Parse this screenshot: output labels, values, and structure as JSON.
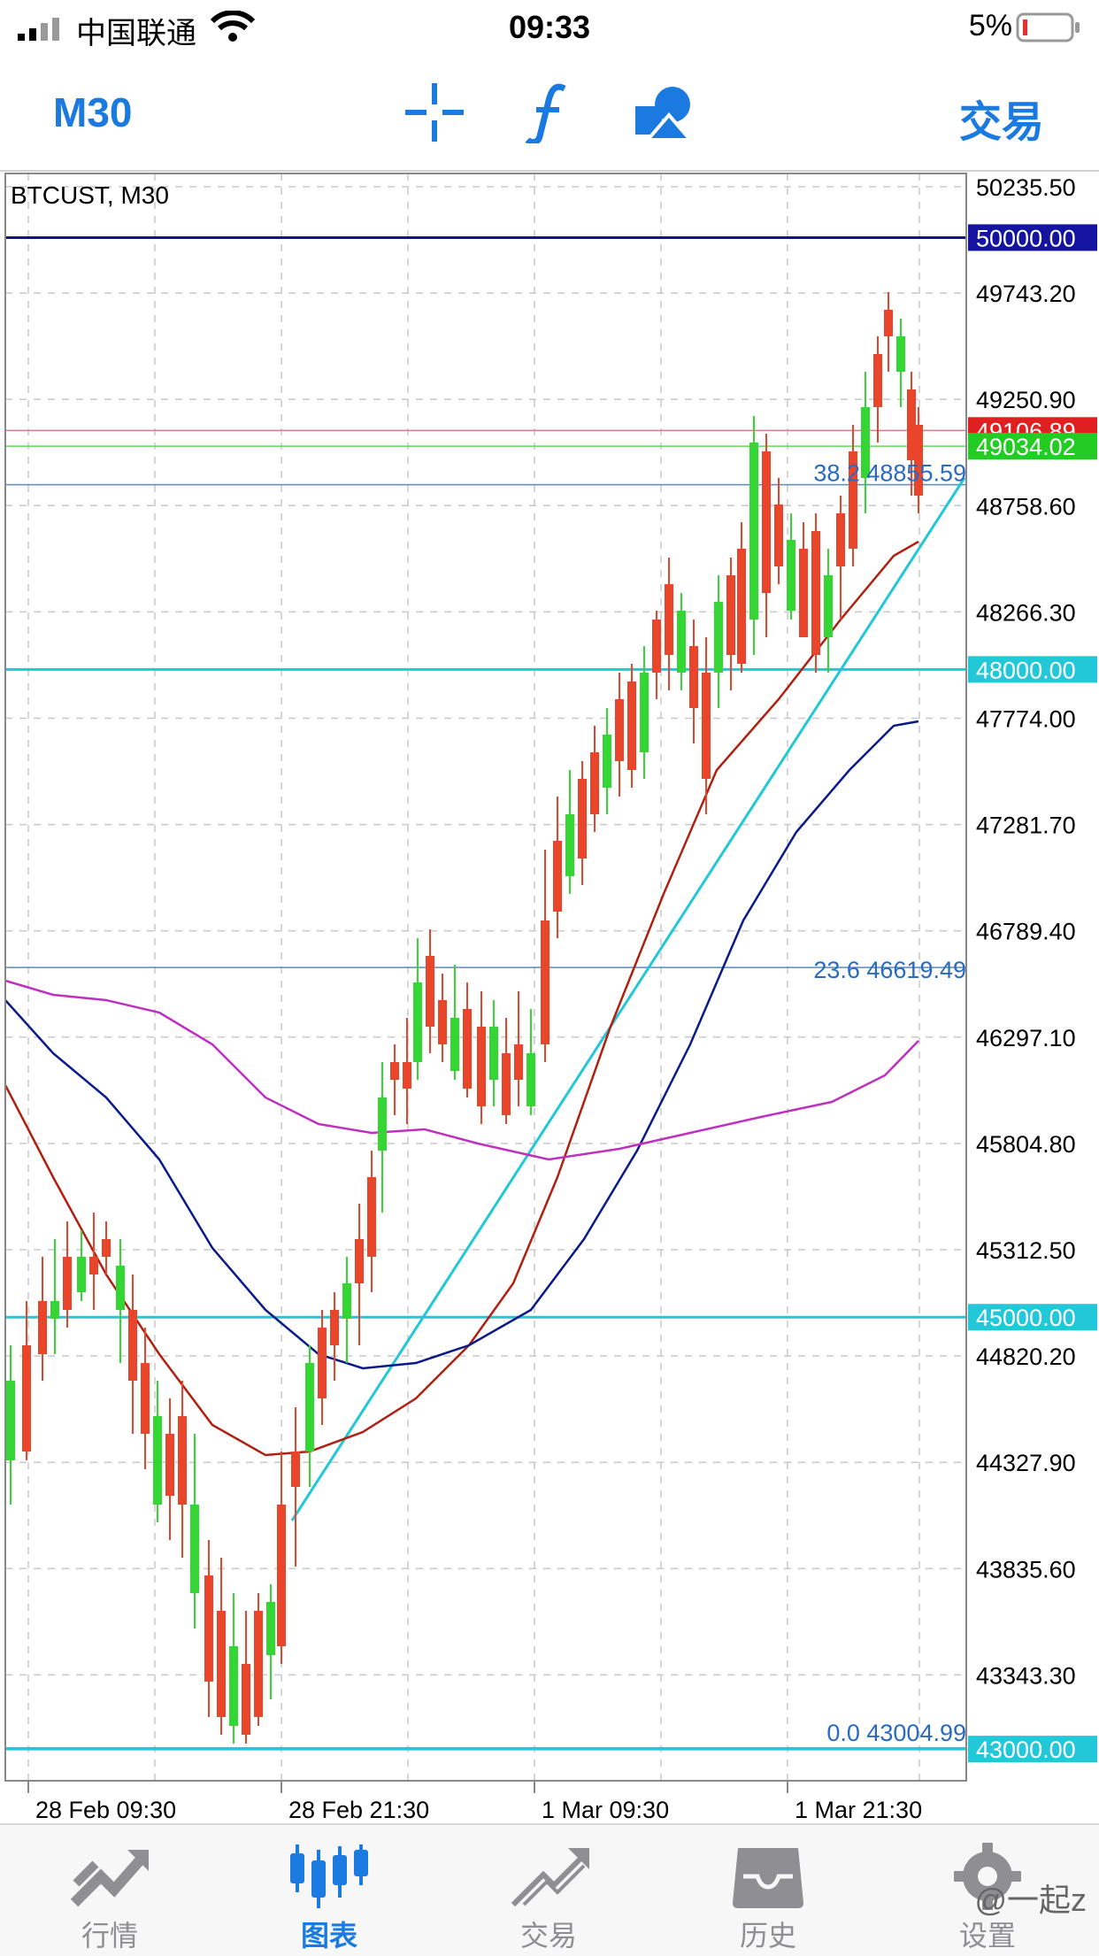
{
  "status_bar": {
    "carrier": "中国联通",
    "time": "09:33",
    "battery": "5%"
  },
  "nav": {
    "timeframe": "M30",
    "trade_label": "交易",
    "icons": [
      "crosshair-icon",
      "function-icon",
      "shapes-icon"
    ]
  },
  "chart": {
    "symbol_label": "BTCUST, M30",
    "price_ticks": [
      "50235.50",
      "49743.20",
      "49250.90",
      "48758.60",
      "48266.30",
      "47774.00",
      "47281.70",
      "46789.40",
      "46297.10",
      "45804.80",
      "45312.50",
      "44820.20",
      "44327.90",
      "43835.60",
      "43343.30"
    ],
    "time_ticks": [
      "28 Feb 09:30",
      "28 Feb 21:30",
      "1 Mar 09:30",
      "1 Mar 21:30"
    ],
    "price_tags": [
      {
        "value": "50000.00",
        "color": "#1414a0"
      },
      {
        "value": "49106.89",
        "color": "#e02020"
      },
      {
        "value": "49034.02",
        "color": "#22cc22"
      },
      {
        "value": "48000.00",
        "color": "#22c8d8"
      },
      {
        "value": "45000.00",
        "color": "#22c8d8"
      },
      {
        "value": "43000.00",
        "color": "#22c8d8"
      }
    ],
    "fibo_labels": [
      {
        "level": "38.2",
        "price": "48855.59"
      },
      {
        "level": "23.6",
        "price": "46619.49"
      },
      {
        "level": "0.0",
        "price": "43004.99"
      }
    ],
    "colors": {
      "bull": "#e8452a",
      "bear": "#33d633",
      "grid": "#c8c8c8",
      "ma_fast": "#b02010",
      "ma_slow": "#0a1a8a",
      "ma_long": "#c030c0",
      "hline_cyan": "#22c8d8",
      "hline_navy": "#10108a"
    }
  },
  "tabs": [
    {
      "label": "行情",
      "icon": "quotes-icon",
      "active": false
    },
    {
      "label": "图表",
      "icon": "chart-icon",
      "active": true
    },
    {
      "label": "交易",
      "icon": "trade-icon",
      "active": false
    },
    {
      "label": "历史",
      "icon": "history-icon",
      "active": false
    },
    {
      "label": "设置",
      "icon": "settings-icon",
      "active": false
    }
  ],
  "watermark": "@一起z"
}
